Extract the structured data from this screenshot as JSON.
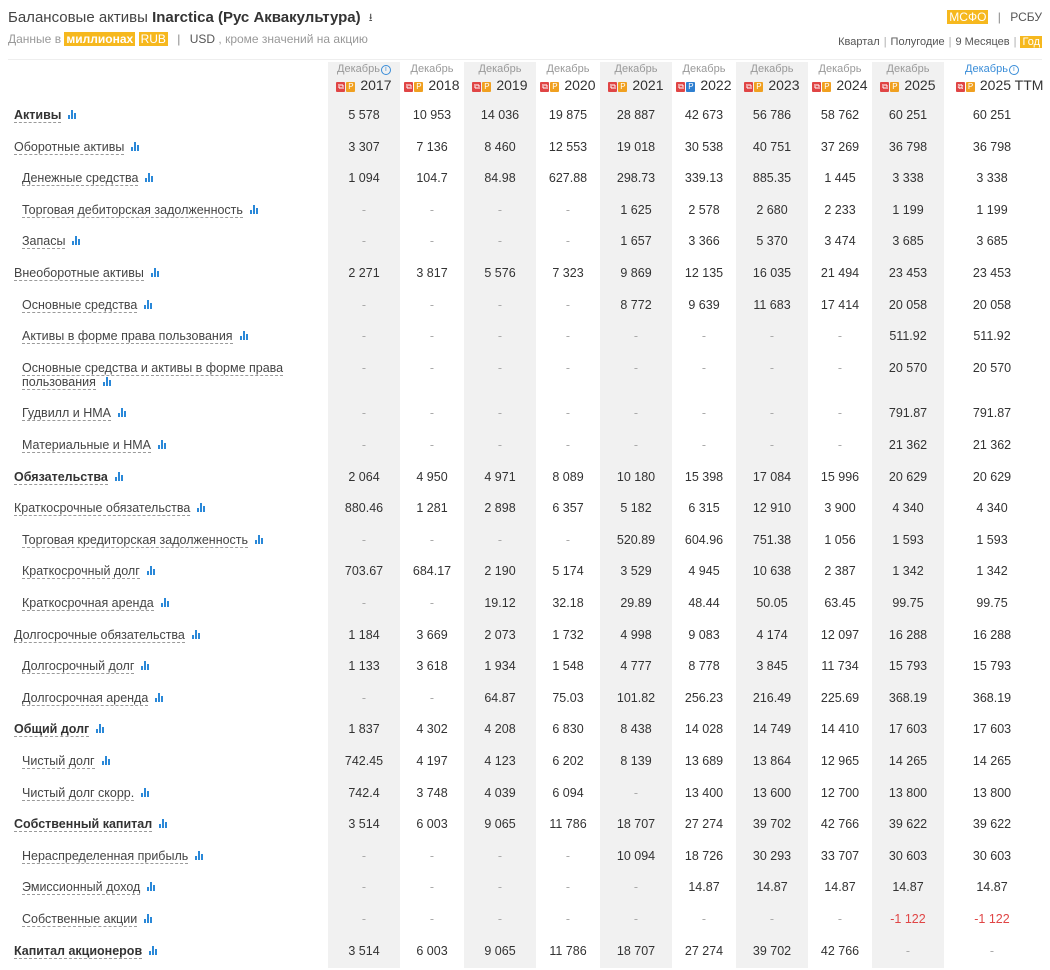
{
  "header": {
    "title_prefix": "Балансовые активы",
    "company": "Inarctica (Рус Аквакультура)",
    "download_icon": "download-icon"
  },
  "units": {
    "prefix": "Данные в",
    "scale": "миллионах",
    "currency_active": "RUB",
    "separator": "|",
    "currency_alt": "USD",
    "suffix": ", кроме значений на акцию"
  },
  "standards": {
    "active": "МСФО",
    "separator": "|",
    "other": "РСБУ"
  },
  "periods": [
    {
      "label": "Квартал",
      "active": false
    },
    {
      "label": "Полугодие",
      "active": false
    },
    {
      "label": "9 Месяцев",
      "active": false
    },
    {
      "label": "Год",
      "active": true
    }
  ],
  "columns": [
    {
      "month": "Декабрь",
      "year": "2017",
      "info": true
    },
    {
      "month": "Декабрь",
      "year": "2018"
    },
    {
      "month": "Декабрь",
      "year": "2019"
    },
    {
      "month": "Декабрь",
      "year": "2020"
    },
    {
      "month": "Декабрь",
      "year": "2021"
    },
    {
      "month": "Декабрь",
      "year": "2022",
      "alt_doc": true
    },
    {
      "month": "Декабрь",
      "year": "2023"
    },
    {
      "month": "Декабрь",
      "year": "2024"
    },
    {
      "month": "Декабрь",
      "year": "2025"
    },
    {
      "month": "Декабрь",
      "year": "2025 TTM",
      "info": true,
      "ttm": true
    }
  ],
  "rows": [
    {
      "label": "Активы",
      "bold": true,
      "values": [
        "5 578",
        "10 953",
        "14 036",
        "19 875",
        "28 887",
        "42 673",
        "56 786",
        "58 762",
        "60 251",
        "60 251"
      ]
    },
    {
      "label": "Оборотные активы",
      "values": [
        "3 307",
        "7 136",
        "8 460",
        "12 553",
        "19 018",
        "30 538",
        "40 751",
        "37 269",
        "36 798",
        "36 798"
      ]
    },
    {
      "label": "Денежные средства",
      "indent": true,
      "values": [
        "1 094",
        "104.7",
        "84.98",
        "627.88",
        "298.73",
        "339.13",
        "885.35",
        "1 445",
        "3 338",
        "3 338"
      ]
    },
    {
      "label": "Торговая дебиторская задолженность",
      "indent": true,
      "values": [
        "-",
        "-",
        "-",
        "-",
        "1 625",
        "2 578",
        "2 680",
        "2 233",
        "1 199",
        "1 199"
      ]
    },
    {
      "label": "Запасы",
      "indent": true,
      "values": [
        "-",
        "-",
        "-",
        "-",
        "1 657",
        "3 366",
        "5 370",
        "3 474",
        "3 685",
        "3 685"
      ]
    },
    {
      "label": "Внеоборотные активы",
      "values": [
        "2 271",
        "3 817",
        "5 576",
        "7 323",
        "9 869",
        "12 135",
        "16 035",
        "21 494",
        "23 453",
        "23 453"
      ]
    },
    {
      "label": "Основные средства",
      "indent": true,
      "values": [
        "-",
        "-",
        "-",
        "-",
        "8 772",
        "9 639",
        "11 683",
        "17 414",
        "20 058",
        "20 058"
      ]
    },
    {
      "label": "Активы в форме права пользования",
      "indent": true,
      "values": [
        "-",
        "-",
        "-",
        "-",
        "-",
        "-",
        "-",
        "-",
        "511.92",
        "511.92"
      ]
    },
    {
      "label": "Основные средства и активы в форме права пользования",
      "indent": true,
      "multi": true,
      "values": [
        "-",
        "-",
        "-",
        "-",
        "-",
        "-",
        "-",
        "-",
        "20 570",
        "20 570"
      ]
    },
    {
      "label": "Гудвилл и НМА",
      "indent": true,
      "values": [
        "-",
        "-",
        "-",
        "-",
        "-",
        "-",
        "-",
        "-",
        "791.87",
        "791.87"
      ]
    },
    {
      "label": "Материальные и НМА",
      "indent": true,
      "values": [
        "-",
        "-",
        "-",
        "-",
        "-",
        "-",
        "-",
        "-",
        "21 362",
        "21 362"
      ]
    },
    {
      "label": "Обязательства",
      "bold": true,
      "values": [
        "2 064",
        "4 950",
        "4 971",
        "8 089",
        "10 180",
        "15 398",
        "17 084",
        "15 996",
        "20 629",
        "20 629"
      ]
    },
    {
      "label": "Краткосрочные обязательства",
      "values": [
        "880.46",
        "1 281",
        "2 898",
        "6 357",
        "5 182",
        "6 315",
        "12 910",
        "3 900",
        "4 340",
        "4 340"
      ]
    },
    {
      "label": "Торговая кредиторская задолженность",
      "indent": true,
      "values": [
        "-",
        "-",
        "-",
        "-",
        "520.89",
        "604.96",
        "751.38",
        "1 056",
        "1 593",
        "1 593"
      ]
    },
    {
      "label": "Краткосрочный долг",
      "indent": true,
      "values": [
        "703.67",
        "684.17",
        "2 190",
        "5 174",
        "3 529",
        "4 945",
        "10 638",
        "2 387",
        "1 342",
        "1 342"
      ]
    },
    {
      "label": "Краткосрочная аренда",
      "indent": true,
      "values": [
        "-",
        "-",
        "19.12",
        "32.18",
        "29.89",
        "48.44",
        "50.05",
        "63.45",
        "99.75",
        "99.75"
      ]
    },
    {
      "label": "Долгосрочные обязательства",
      "values": [
        "1 184",
        "3 669",
        "2 073",
        "1 732",
        "4 998",
        "9 083",
        "4 174",
        "12 097",
        "16 288",
        "16 288"
      ]
    },
    {
      "label": "Долгосрочный долг",
      "indent": true,
      "values": [
        "1 133",
        "3 618",
        "1 934",
        "1 548",
        "4 777",
        "8 778",
        "3 845",
        "11 734",
        "15 793",
        "15 793"
      ]
    },
    {
      "label": "Долгосрочная аренда",
      "indent": true,
      "values": [
        "-",
        "-",
        "64.87",
        "75.03",
        "101.82",
        "256.23",
        "216.49",
        "225.69",
        "368.19",
        "368.19"
      ]
    },
    {
      "label": "Общий долг",
      "bold": true,
      "values": [
        "1 837",
        "4 302",
        "4 208",
        "6 830",
        "8 438",
        "14 028",
        "14 749",
        "14 410",
        "17 603",
        "17 603"
      ]
    },
    {
      "label": "Чистый долг",
      "indent": true,
      "values": [
        "742.45",
        "4 197",
        "4 123",
        "6 202",
        "8 139",
        "13 689",
        "13 864",
        "12 965",
        "14 265",
        "14 265"
      ]
    },
    {
      "label": "Чистый долг скорр.",
      "indent": true,
      "values": [
        "742.4",
        "3 748",
        "4 039",
        "6 094",
        "-",
        "13 400",
        "13 600",
        "12 700",
        "13 800",
        "13 800"
      ]
    },
    {
      "label": "Собственный капитал",
      "bold": true,
      "values": [
        "3 514",
        "6 003",
        "9 065",
        "11 786",
        "18 707",
        "27 274",
        "39 702",
        "42 766",
        "39 622",
        "39 622"
      ]
    },
    {
      "label": "Нераспределенная прибыль",
      "indent": true,
      "values": [
        "-",
        "-",
        "-",
        "-",
        "10 094",
        "18 726",
        "30 293",
        "33 707",
        "30 603",
        "30 603"
      ]
    },
    {
      "label": "Эмиссионный доход",
      "indent": true,
      "values": [
        "-",
        "-",
        "-",
        "-",
        "-",
        "14.87",
        "14.87",
        "14.87",
        "14.87",
        "14.87"
      ]
    },
    {
      "label": "Собственные акции",
      "indent": true,
      "values": [
        "-",
        "-",
        "-",
        "-",
        "-",
        "-",
        "-",
        "-",
        "-1 122",
        "-1 122"
      ]
    },
    {
      "label": "Капитал акционеров",
      "bold": true,
      "values": [
        "3 514",
        "6 003",
        "9 065",
        "11 786",
        "18 707",
        "27 274",
        "39 702",
        "42 766",
        "-",
        "-"
      ]
    }
  ],
  "colors": {
    "accent": "#f6b81e",
    "link_blue": "#2a88d8",
    "negative": "#e04545",
    "shade": "#f1f1f1"
  }
}
